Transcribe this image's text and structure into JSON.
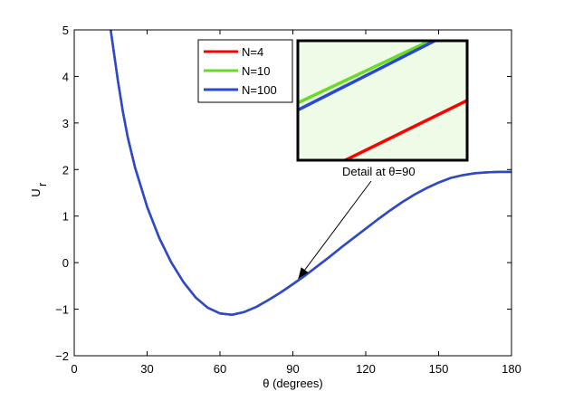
{
  "chart_data": {
    "type": "line",
    "title": "",
    "xlabel": "θ (degrees)",
    "ylabel": "U",
    "ylabel_subscript": "r",
    "xlim": [
      0,
      180
    ],
    "ylim": [
      -2,
      5
    ],
    "xticks": [
      0,
      30,
      60,
      90,
      120,
      150,
      180
    ],
    "yticks": [
      -2,
      -1,
      0,
      1,
      2,
      3,
      4,
      5
    ],
    "grid": false,
    "legend_position": "top-center",
    "series": [
      {
        "name": "N=4",
        "color": "#ff0000",
        "x": [
          15,
          18,
          20,
          22,
          25,
          30,
          35,
          40,
          45,
          50,
          55,
          60,
          65,
          70,
          75,
          80,
          85,
          90,
          95,
          100,
          105,
          110,
          115,
          120,
          125,
          130,
          135,
          140,
          145,
          150,
          155,
          160,
          165,
          170,
          175,
          180
        ],
        "y": [
          5.0,
          3.9,
          3.25,
          2.7,
          2.05,
          1.2,
          0.53,
          0.0,
          -0.42,
          -0.75,
          -0.97,
          -1.09,
          -1.12,
          -1.06,
          -0.95,
          -0.8,
          -0.64,
          -0.465,
          -0.28,
          -0.08,
          0.12,
          0.33,
          0.53,
          0.73,
          0.93,
          1.12,
          1.3,
          1.46,
          1.6,
          1.72,
          1.82,
          1.88,
          1.92,
          1.94,
          1.95,
          1.95
        ]
      },
      {
        "name": "N=10",
        "color": "#66dd22",
        "x": [
          15,
          18,
          20,
          22,
          25,
          30,
          35,
          40,
          45,
          50,
          55,
          60,
          65,
          70,
          75,
          80,
          85,
          90,
          95,
          100,
          105,
          110,
          115,
          120,
          125,
          130,
          135,
          140,
          145,
          150,
          155,
          160,
          165,
          170,
          175,
          180
        ],
        "y": [
          5.0,
          3.9,
          3.25,
          2.7,
          2.05,
          1.2,
          0.53,
          0.0,
          -0.42,
          -0.75,
          -0.97,
          -1.09,
          -1.12,
          -1.06,
          -0.95,
          -0.8,
          -0.64,
          -0.46,
          -0.28,
          -0.08,
          0.12,
          0.33,
          0.53,
          0.73,
          0.93,
          1.12,
          1.3,
          1.46,
          1.6,
          1.72,
          1.82,
          1.88,
          1.92,
          1.94,
          1.95,
          1.95
        ]
      },
      {
        "name": "N=100",
        "color": "#2a47d6",
        "x": [
          15,
          18,
          20,
          22,
          25,
          30,
          35,
          40,
          45,
          50,
          55,
          60,
          65,
          70,
          75,
          80,
          85,
          90,
          95,
          100,
          105,
          110,
          115,
          120,
          125,
          130,
          135,
          140,
          145,
          150,
          155,
          160,
          165,
          170,
          175,
          180
        ],
        "y": [
          5.0,
          3.9,
          3.25,
          2.7,
          2.05,
          1.2,
          0.53,
          0.0,
          -0.42,
          -0.75,
          -0.97,
          -1.09,
          -1.12,
          -1.06,
          -0.95,
          -0.8,
          -0.64,
          -0.46,
          -0.28,
          -0.08,
          0.12,
          0.33,
          0.53,
          0.73,
          0.93,
          1.12,
          1.3,
          1.46,
          1.6,
          1.72,
          1.82,
          1.88,
          1.92,
          1.94,
          1.95,
          1.95
        ]
      }
    ],
    "inset": {
      "background": "#eefbe6",
      "segments": [
        {
          "series": "N=4",
          "from": [
            0.28,
            0.0
          ],
          "to": [
            1.0,
            0.5
          ]
        },
        {
          "series": "N=10",
          "from": [
            0.0,
            0.48
          ],
          "to": [
            0.78,
            1.0
          ]
        },
        {
          "series": "N=100",
          "from": [
            0.0,
            0.42
          ],
          "to": [
            0.81,
            1.0
          ]
        }
      ]
    },
    "annotations": [
      {
        "text": "Detail at θ=90",
        "target": [
          90,
          -0.46
        ]
      }
    ]
  }
}
